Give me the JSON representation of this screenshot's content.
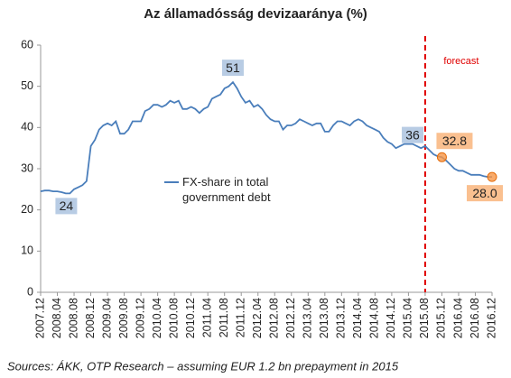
{
  "chart_data": {
    "type": "line",
    "title": "Az államadósság devizaaránya (%)",
    "source": "Sources: ÁKK, OTP Research – assuming EUR 1.2 bn prepayment in 2015",
    "categories": [
      "2007.12",
      null,
      null,
      null,
      "2008.04",
      null,
      null,
      null,
      "2008.08",
      null,
      null,
      null,
      "2008.12",
      null,
      null,
      null,
      "2009.04",
      null,
      null,
      null,
      "2009.08",
      null,
      null,
      null,
      "2009.12",
      null,
      null,
      null,
      "2010.04",
      null,
      null,
      null,
      "2010.08",
      null,
      null,
      null,
      "2010.12",
      null,
      null,
      null,
      "2011.04",
      null,
      null,
      null,
      "2011.08",
      null,
      null,
      null,
      "2011.12",
      null,
      null,
      null,
      "2012.04",
      null,
      null,
      null,
      "2012.08",
      null,
      null,
      null,
      "2012.12",
      null,
      null,
      null,
      "2013.04",
      null,
      null,
      null,
      "2013.08",
      null,
      null,
      null,
      "2013.12",
      null,
      null,
      null,
      "2014.04",
      null,
      null,
      null,
      "2014.08",
      null,
      null,
      null,
      "2014.12",
      null,
      null,
      null,
      "2015.04",
      null,
      null,
      null,
      "2015.08",
      null,
      null,
      null,
      "2015.12",
      null,
      null,
      null,
      "2016.04",
      null,
      null,
      null,
      "2016.08",
      null,
      null,
      null,
      "2016.12"
    ],
    "series": [
      {
        "name": "FX-share in total government debt",
        "color": "#4a7ebb",
        "values": [
          24.5,
          24.7,
          24.7,
          24.5,
          24.5,
          24.3,
          24,
          24,
          25,
          25.5,
          26,
          27,
          35.5,
          37,
          39.5,
          40.5,
          41,
          40.5,
          41.5,
          38.5,
          38.5,
          39.5,
          41.5,
          41.5,
          41.5,
          44,
          44.5,
          45.5,
          45.5,
          45,
          45.5,
          46.5,
          46,
          46.5,
          44.5,
          44.5,
          45,
          44.5,
          43.5,
          44.5,
          45,
          47,
          47.5,
          48,
          49.5,
          50,
          51,
          49.5,
          47.5,
          46,
          46.5,
          45,
          45.5,
          44.5,
          43,
          42,
          41.5,
          41.5,
          39.5,
          40.5,
          40.5,
          41,
          42,
          41.5,
          41,
          40.5,
          41,
          41,
          39,
          39,
          40.5,
          41.5,
          41.5,
          41,
          40.5,
          41.5,
          42,
          41.5,
          40.5,
          40,
          39.5,
          39,
          37.5,
          36.5,
          36,
          35,
          35.5,
          36,
          36,
          36,
          35.5,
          35,
          35.5,
          34.5,
          33.5,
          33,
          32.8,
          32,
          31,
          30,
          29.5,
          29.5,
          29,
          28.5,
          28.5,
          28.5,
          28.2,
          28,
          28
        ],
        "value_labels": [
          null,
          null,
          null,
          null,
          null,
          null,
          null,
          "24",
          null,
          null,
          null,
          null,
          null,
          null,
          null,
          null,
          null,
          null,
          null,
          null,
          null,
          null,
          null,
          null,
          null,
          null,
          null,
          null,
          null,
          null,
          null,
          null,
          null,
          null,
          null,
          null,
          null,
          null,
          null,
          null,
          null,
          null,
          null,
          null,
          null,
          null,
          "51",
          null,
          null,
          null,
          null,
          null,
          null,
          null,
          null,
          null,
          null,
          null,
          null,
          null,
          null,
          null,
          null,
          null,
          null,
          null,
          null,
          null,
          null,
          null,
          null,
          null,
          null,
          null,
          null,
          null,
          null,
          null,
          null,
          null,
          null,
          null,
          null,
          null,
          null,
          null,
          null,
          null,
          null,
          "36",
          null,
          null,
          null,
          null,
          null,
          null,
          "32.8",
          null,
          null,
          null,
          null,
          null,
          null,
          null,
          null,
          null,
          null,
          null,
          "28.0"
        ]
      }
    ],
    "forecast": {
      "text": "forecast",
      "x": "2015.08",
      "color": "#e00000"
    },
    "label_color": "#b8cce4",
    "forecast_label_color": "#fac090",
    "forecast_marker_color": "#f79646",
    "ylim": [
      0,
      60
    ],
    "yticks": [
      0,
      10,
      20,
      30,
      40,
      50,
      60
    ],
    "grid": false
  }
}
